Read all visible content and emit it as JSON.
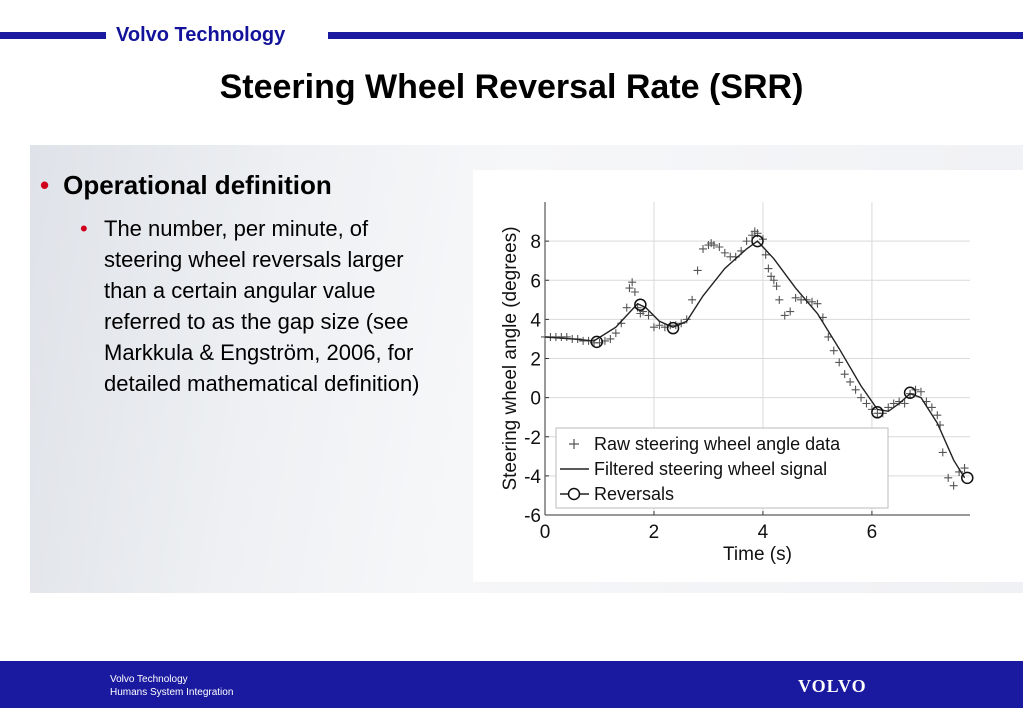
{
  "header": {
    "brand": "Volvo Technology"
  },
  "title": "Steering Wheel Reversal Rate (SRR)",
  "bullets": {
    "level1": "Operational definition",
    "level2": "The number, per minute, of steering wheel reversals larger than a certain angular value referred to as the gap size (see Markkula & Engström, 2006, for detailed mathematical definition)"
  },
  "footer": {
    "line1": "Volvo Technology",
    "line2": "Humans System Integration",
    "logo": "VOLVO"
  },
  "colors": {
    "brand_blue": "#1a1aa0",
    "bullet_red": "#d0001c"
  },
  "chart_data": {
    "type": "line",
    "xlabel": "Time (s)",
    "ylabel": "Steering wheel angle (degrees)",
    "xlim": [
      0,
      7.8
    ],
    "ylim": [
      -6,
      10
    ],
    "xticks": [
      0,
      2,
      4,
      6
    ],
    "yticks": [
      -6,
      -4,
      -2,
      0,
      2,
      4,
      6,
      8
    ],
    "grid": true,
    "legend_position": "lower-left",
    "series": [
      {
        "name": "Raw steering wheel angle data",
        "marker": "plus",
        "x": [
          0.0,
          0.1,
          0.2,
          0.3,
          0.4,
          0.5,
          0.6,
          0.7,
          0.8,
          0.9,
          1.0,
          1.1,
          1.2,
          1.3,
          1.4,
          1.5,
          1.55,
          1.6,
          1.65,
          1.7,
          1.75,
          1.8,
          1.9,
          2.0,
          2.1,
          2.2,
          2.3,
          2.4,
          2.5,
          2.6,
          2.7,
          2.8,
          2.9,
          3.0,
          3.05,
          3.1,
          3.2,
          3.3,
          3.4,
          3.5,
          3.6,
          3.7,
          3.8,
          3.85,
          3.9,
          4.0,
          4.05,
          4.1,
          4.15,
          4.2,
          4.25,
          4.3,
          4.4,
          4.5,
          4.6,
          4.7,
          4.8,
          4.9,
          5.0,
          5.1,
          5.2,
          5.3,
          5.4,
          5.5,
          5.6,
          5.7,
          5.8,
          5.9,
          6.0,
          6.1,
          6.2,
          6.3,
          6.4,
          6.5,
          6.6,
          6.7,
          6.8,
          6.9,
          7.0,
          7.1,
          7.2,
          7.25,
          7.3,
          7.4,
          7.5,
          7.6,
          7.7
        ],
        "y": [
          3.1,
          3.1,
          3.1,
          3.1,
          3.1,
          3.0,
          3.0,
          2.9,
          2.9,
          2.8,
          2.8,
          2.9,
          3.0,
          3.3,
          3.8,
          4.6,
          5.6,
          5.9,
          5.4,
          4.6,
          4.3,
          4.4,
          4.2,
          3.6,
          3.7,
          3.6,
          3.7,
          3.7,
          3.8,
          4.0,
          5.0,
          6.5,
          7.6,
          7.8,
          7.9,
          7.8,
          7.7,
          7.4,
          7.2,
          7.2,
          7.5,
          8.0,
          8.3,
          8.5,
          8.4,
          8.1,
          7.3,
          6.6,
          6.2,
          6.0,
          5.7,
          5.0,
          4.2,
          4.4,
          5.1,
          5.0,
          5.0,
          4.9,
          4.8,
          4.1,
          3.1,
          2.4,
          1.8,
          1.2,
          0.8,
          0.4,
          0.0,
          -0.3,
          -0.6,
          -0.8,
          -0.8,
          -0.5,
          -0.3,
          -0.2,
          -0.3,
          0.2,
          0.4,
          0.3,
          -0.2,
          -0.5,
          -0.9,
          -1.4,
          -2.8,
          -4.1,
          -4.5,
          -3.8,
          -3.6
        ]
      },
      {
        "name": "Filtered steering wheel signal",
        "marker": "none",
        "x": [
          0.0,
          0.5,
          0.9,
          1.3,
          1.7,
          1.85,
          2.1,
          2.35,
          2.6,
          2.9,
          3.3,
          3.7,
          3.9,
          4.2,
          4.6,
          5.0,
          5.4,
          5.8,
          6.1,
          6.3,
          6.5,
          6.7,
          6.9,
          7.2,
          7.5,
          7.7
        ],
        "y": [
          3.1,
          3.0,
          2.9,
          3.6,
          4.8,
          4.6,
          3.9,
          3.6,
          3.9,
          5.2,
          6.6,
          7.6,
          8.0,
          7.1,
          5.6,
          4.3,
          2.5,
          0.6,
          -0.6,
          -0.7,
          -0.3,
          0.2,
          0.0,
          -1.3,
          -3.2,
          -4.1
        ]
      },
      {
        "name": "Reversals",
        "marker": "circle",
        "x": [
          0.95,
          1.75,
          2.35,
          3.9,
          6.1,
          6.7,
          7.75
        ],
        "y": [
          2.85,
          4.75,
          3.55,
          8.0,
          -0.75,
          0.25,
          -4.1
        ]
      }
    ]
  }
}
